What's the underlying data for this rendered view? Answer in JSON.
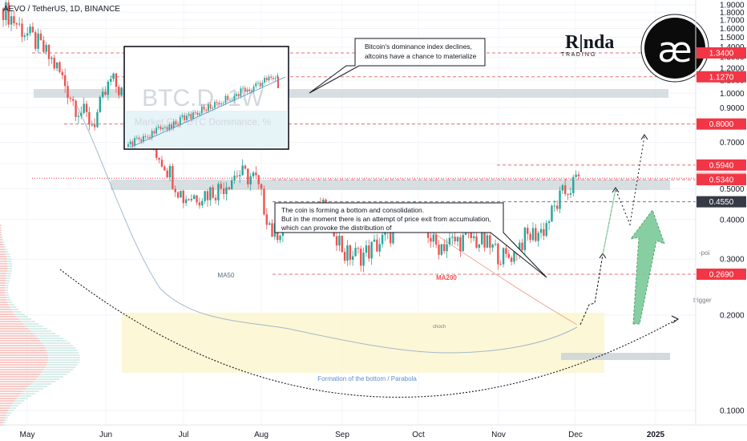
{
  "header": {
    "symbol_line": "AEVO / TetherUS, 1D, BINANCE"
  },
  "brand": {
    "wordmark_top": "R|nda",
    "wordmark_bottom": "T R A D I N G",
    "logo_glyph": "æ"
  },
  "colors": {
    "up": "#26a69a",
    "down": "#ef5350",
    "red_line": "#e57373",
    "badge_red": "#f23645",
    "badge_slate": "#363a45",
    "zone_yellow": "#fbf6cf",
    "zone_gray": "#c8d1d6",
    "ma50": "#8fa8c8",
    "ma200": "#f0a898",
    "arrow_green": "#7cc99a"
  },
  "annotations": {
    "btc_note": [
      "Bitcoin's dominance index declines,",
      "altcoins have a chance to materialize"
    ],
    "coin_note": [
      "The coin is forming a bottom and consolidation.",
      "But in the moment there is an attempt of price exit from accumulation,",
      "which can provoke the distribution of"
    ],
    "ma50_label": "MA50",
    "ma200_label": "MA200",
    "choch_label": "choch",
    "parabola_label": "Formation of the bottom / Parabola",
    "poi_label": "-poi",
    "trigger_label": "trigger",
    "inset_watermark_big": "BTC.D, 1W",
    "inset_watermark_small": "Market Cap BTC Dominance, %"
  },
  "chart_data": {
    "type": "candlestick",
    "title": "AEVO / TetherUS, 1D, BINANCE",
    "y_scale": "log",
    "ylim": [
      0.08,
      1.95
    ],
    "y_ticks": [
      "1.9000",
      "1.8000",
      "1.7000",
      "1.6000",
      "1.5000",
      "1.4000",
      "1.3000",
      "1.2000",
      "1.1000",
      "1.0000",
      "0.9000",
      "0.8000",
      "0.7000",
      "0.6000",
      "0.5000",
      "0.4000",
      "0.3000",
      "0.2000",
      "0.1000"
    ],
    "x_ticks": [
      "May",
      "Jun",
      "Jul",
      "Aug",
      "Sep",
      "Oct",
      "Nov",
      "Dec",
      "2025"
    ],
    "price_levels": [
      {
        "value": 1.34,
        "label": "1.3400",
        "style": "red"
      },
      {
        "value": 1.127,
        "label": "1.1270",
        "style": "red",
        "tag": "-poi"
      },
      {
        "value": 0.8,
        "label": "0.8000",
        "style": "red",
        "tag": "-poi"
      },
      {
        "value": 0.594,
        "label": "0.5940",
        "style": "red",
        "tag": "trigger"
      },
      {
        "value": 0.5397,
        "label": "0.5397",
        "style": "current"
      },
      {
        "value": 0.534,
        "label": "0.5340",
        "style": "red"
      },
      {
        "value": 0.455,
        "label": "0.4550",
        "style": "slate"
      },
      {
        "value": 0.269,
        "label": "0.2690",
        "style": "red"
      }
    ],
    "candles_approx": [
      {
        "date": "2024-05",
        "close": 1.85
      },
      {
        "date": "2024-05-06",
        "close": 1.6
      },
      {
        "date": "2024-05-13",
        "close": 1.42
      },
      {
        "date": "2024-05-20",
        "close": 1.2
      },
      {
        "date": "2024-05-27",
        "close": 0.92
      },
      {
        "date": "2024-06-01",
        "close": 0.8
      },
      {
        "date": "2024-06-03",
        "close": 1.1
      },
      {
        "date": "2024-06-10",
        "close": 0.95
      },
      {
        "date": "2024-06-17",
        "close": 0.72
      },
      {
        "date": "2024-06-24",
        "close": 0.6
      },
      {
        "date": "2024-07-01",
        "close": 0.47
      },
      {
        "date": "2024-07-08",
        "close": 0.48
      },
      {
        "date": "2024-07-15",
        "close": 0.5
      },
      {
        "date": "2024-07-22",
        "close": 0.56
      },
      {
        "date": "2024-07-29",
        "close": 0.54
      },
      {
        "date": "2024-08-05",
        "close": 0.36
      },
      {
        "date": "2024-08-12",
        "close": 0.4
      },
      {
        "date": "2024-08-19",
        "close": 0.42
      },
      {
        "date": "2024-08-26",
        "close": 0.43
      },
      {
        "date": "2024-09-02",
        "close": 0.31
      },
      {
        "date": "2024-09-09",
        "close": 0.31
      },
      {
        "date": "2024-09-16",
        "close": 0.34
      },
      {
        "date": "2024-09-23",
        "close": 0.38
      },
      {
        "date": "2024-09-30",
        "close": 0.43
      },
      {
        "date": "2024-10-07",
        "close": 0.33
      },
      {
        "date": "2024-10-14",
        "close": 0.34
      },
      {
        "date": "2024-10-21",
        "close": 0.35
      },
      {
        "date": "2024-10-28",
        "close": 0.33
      },
      {
        "date": "2024-11-04",
        "close": 0.3
      },
      {
        "date": "2024-11-11",
        "close": 0.35
      },
      {
        "date": "2024-11-18",
        "close": 0.37
      },
      {
        "date": "2024-11-25",
        "close": 0.47
      },
      {
        "date": "2024-12-02",
        "close": 0.54
      }
    ]
  }
}
